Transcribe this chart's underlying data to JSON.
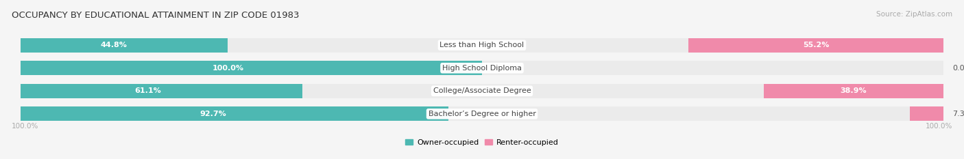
{
  "title": "OCCUPANCY BY EDUCATIONAL ATTAINMENT IN ZIP CODE 01983",
  "source": "Source: ZipAtlas.com",
  "categories": [
    "Less than High School",
    "High School Diploma",
    "College/Associate Degree",
    "Bachelor’s Degree or higher"
  ],
  "owner_pct": [
    44.8,
    100.0,
    61.1,
    92.7
  ],
  "renter_pct": [
    55.2,
    0.0,
    38.9,
    7.3
  ],
  "owner_color": "#4db8b2",
  "renter_color": "#f08aaa",
  "renter_light_color": "#f5afc5",
  "bar_bg_color": "#ebebeb",
  "background_color": "#f5f5f5",
  "legend_owner": "Owner-occupied",
  "legend_renter": "Renter-occupied",
  "axis_label_left": "100.0%",
  "axis_label_right": "100.0%",
  "title_fontsize": 9.5,
  "label_fontsize": 8,
  "category_fontsize": 8,
  "source_fontsize": 7.5
}
